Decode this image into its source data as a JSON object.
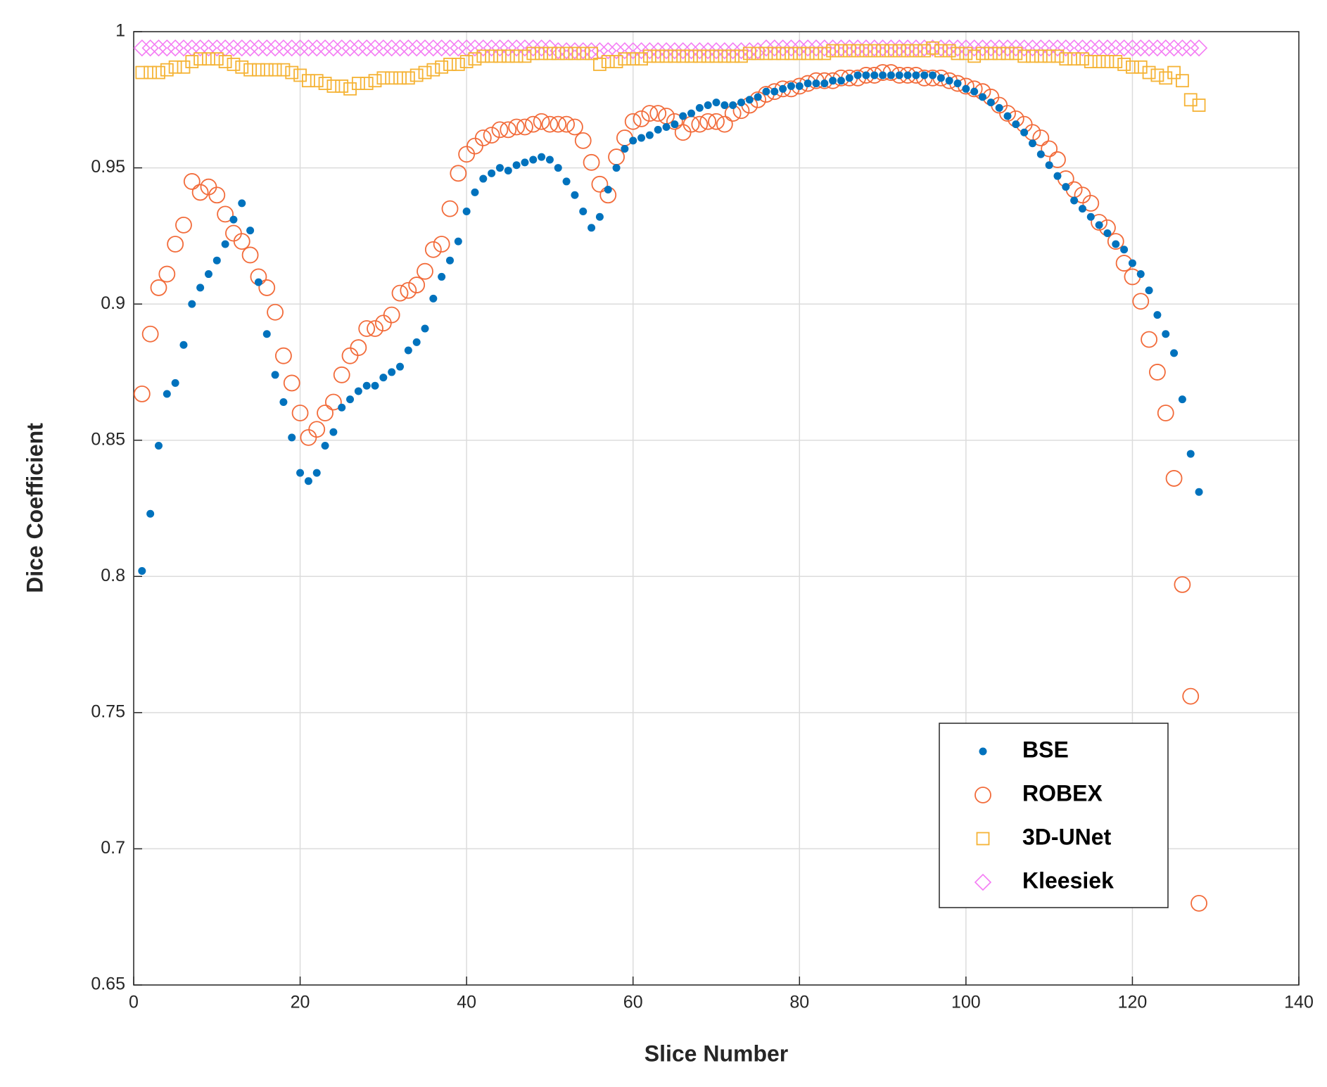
{
  "chart_data": {
    "type": "scatter",
    "x_label": "Slice Number",
    "y_label": "Dice Coefficient",
    "xlim": [
      0,
      140
    ],
    "xticks": [
      0,
      20,
      40,
      60,
      80,
      100,
      120,
      140
    ],
    "ylim": [
      0.65,
      1
    ],
    "yticks": [
      0.65,
      0.7,
      0.75,
      0.8,
      0.85,
      0.9,
      0.95,
      1
    ],
    "grid": true,
    "legend": "lower-right",
    "x": [
      1,
      2,
      3,
      4,
      5,
      6,
      7,
      8,
      9,
      10,
      11,
      12,
      13,
      14,
      15,
      16,
      17,
      18,
      19,
      20,
      21,
      22,
      23,
      24,
      25,
      26,
      27,
      28,
      29,
      30,
      31,
      32,
      33,
      34,
      35,
      36,
      37,
      38,
      39,
      40,
      41,
      42,
      43,
      44,
      45,
      46,
      47,
      48,
      49,
      50,
      51,
      52,
      53,
      54,
      55,
      56,
      57,
      58,
      59,
      60,
      61,
      62,
      63,
      64,
      65,
      66,
      67,
      68,
      69,
      70,
      71,
      72,
      73,
      74,
      75,
      76,
      77,
      78,
      79,
      80,
      81,
      82,
      83,
      84,
      85,
      86,
      87,
      88,
      89,
      90,
      91,
      92,
      93,
      94,
      95,
      96,
      97,
      98,
      99,
      100,
      101,
      102,
      103,
      104,
      105,
      106,
      107,
      108,
      109,
      110,
      111,
      112,
      113,
      114,
      115,
      116,
      117,
      118,
      119,
      120,
      121,
      122,
      123,
      124,
      125,
      126,
      127,
      128
    ],
    "series": [
      {
        "name": "BSE",
        "color": "#0072bd",
        "marker": "dot",
        "values": [
          0.802,
          0.823,
          0.848,
          0.867,
          0.871,
          0.885,
          0.9,
          0.906,
          0.911,
          0.916,
          0.922,
          0.931,
          0.937,
          0.927,
          0.908,
          0.889,
          0.874,
          0.864,
          0.851,
          0.838,
          0.835,
          0.838,
          0.848,
          0.853,
          0.862,
          0.865,
          0.868,
          0.87,
          0.87,
          0.873,
          0.875,
          0.877,
          0.883,
          0.886,
          0.891,
          0.902,
          0.91,
          0.916,
          0.923,
          0.934,
          0.941,
          0.946,
          0.948,
          0.95,
          0.949,
          0.951,
          0.952,
          0.953,
          0.954,
          0.953,
          0.95,
          0.945,
          0.94,
          0.934,
          0.928,
          0.932,
          0.942,
          0.95,
          0.957,
          0.96,
          0.961,
          0.962,
          0.964,
          0.965,
          0.966,
          0.969,
          0.97,
          0.972,
          0.973,
          0.974,
          0.973,
          0.973,
          0.974,
          0.975,
          0.976,
          0.978,
          0.978,
          0.979,
          0.98,
          0.98,
          0.981,
          0.981,
          0.981,
          0.982,
          0.982,
          0.983,
          0.984,
          0.984,
          0.984,
          0.984,
          0.984,
          0.984,
          0.984,
          0.984,
          0.984,
          0.984,
          0.983,
          0.982,
          0.981,
          0.979,
          0.978,
          0.976,
          0.974,
          0.972,
          0.969,
          0.966,
          0.963,
          0.959,
          0.955,
          0.951,
          0.947,
          0.943,
          0.938,
          0.935,
          0.932,
          0.929,
          0.926,
          0.922,
          0.92,
          0.915,
          0.911,
          0.905,
          0.896,
          0.889,
          0.882,
          0.865,
          0.845,
          0.831
        ]
      },
      {
        "name": "ROBEX",
        "color": "#f26b3a",
        "marker": "circle",
        "values": [
          0.867,
          0.889,
          0.906,
          0.911,
          0.922,
          0.929,
          0.945,
          0.941,
          0.943,
          0.94,
          0.933,
          0.926,
          0.923,
          0.918,
          0.91,
          0.906,
          0.897,
          0.881,
          0.871,
          0.86,
          0.851,
          0.854,
          0.86,
          0.864,
          0.874,
          0.881,
          0.884,
          0.891,
          0.891,
          0.893,
          0.896,
          0.904,
          0.905,
          0.907,
          0.912,
          0.92,
          0.922,
          0.935,
          0.948,
          0.955,
          0.958,
          0.961,
          0.962,
          0.964,
          0.964,
          0.965,
          0.965,
          0.966,
          0.967,
          0.966,
          0.966,
          0.966,
          0.965,
          0.96,
          0.952,
          0.944,
          0.94,
          0.954,
          0.961,
          0.967,
          0.968,
          0.97,
          0.97,
          0.969,
          0.967,
          0.963,
          0.966,
          0.966,
          0.967,
          0.967,
          0.966,
          0.97,
          0.971,
          0.973,
          0.975,
          0.977,
          0.978,
          0.979,
          0.979,
          0.98,
          0.981,
          0.982,
          0.982,
          0.982,
          0.983,
          0.983,
          0.983,
          0.984,
          0.984,
          0.985,
          0.985,
          0.984,
          0.984,
          0.984,
          0.983,
          0.983,
          0.983,
          0.982,
          0.981,
          0.98,
          0.979,
          0.978,
          0.976,
          0.973,
          0.97,
          0.968,
          0.966,
          0.963,
          0.961,
          0.957,
          0.953,
          0.946,
          0.942,
          0.94,
          0.937,
          0.93,
          0.928,
          0.923,
          0.915,
          0.91,
          0.901,
          0.887,
          0.875,
          0.86,
          0.836,
          0.797,
          0.756,
          0.68
        ]
      },
      {
        "name": "3D-UNet",
        "color": "#f5b335",
        "marker": "square",
        "values": [
          0.985,
          0.985,
          0.985,
          0.986,
          0.987,
          0.987,
          0.989,
          0.99,
          0.99,
          0.99,
          0.989,
          0.988,
          0.987,
          0.986,
          0.986,
          0.986,
          0.986,
          0.986,
          0.985,
          0.984,
          0.982,
          0.982,
          0.981,
          0.98,
          0.98,
          0.979,
          0.981,
          0.981,
          0.982,
          0.983,
          0.983,
          0.983,
          0.983,
          0.984,
          0.985,
          0.986,
          0.987,
          0.988,
          0.988,
          0.989,
          0.99,
          0.991,
          0.991,
          0.991,
          0.991,
          0.991,
          0.991,
          0.992,
          0.992,
          0.992,
          0.992,
          0.992,
          0.992,
          0.992,
          0.992,
          0.988,
          0.989,
          0.989,
          0.99,
          0.99,
          0.99,
          0.991,
          0.991,
          0.991,
          0.991,
          0.991,
          0.991,
          0.991,
          0.991,
          0.991,
          0.991,
          0.991,
          0.991,
          0.992,
          0.992,
          0.992,
          0.992,
          0.992,
          0.992,
          0.992,
          0.992,
          0.992,
          0.992,
          0.993,
          0.993,
          0.993,
          0.993,
          0.993,
          0.993,
          0.993,
          0.993,
          0.993,
          0.993,
          0.993,
          0.993,
          0.994,
          0.993,
          0.993,
          0.992,
          0.992,
          0.991,
          0.992,
          0.992,
          0.992,
          0.992,
          0.992,
          0.991,
          0.991,
          0.991,
          0.991,
          0.991,
          0.99,
          0.99,
          0.99,
          0.989,
          0.989,
          0.989,
          0.989,
          0.988,
          0.987,
          0.987,
          0.985,
          0.984,
          0.983,
          0.985,
          0.982,
          0.975,
          0.973
        ]
      },
      {
        "name": "Kleesiek",
        "color": "#f47cf4",
        "marker": "diamond",
        "values": [
          0.994,
          0.994,
          0.994,
          0.994,
          0.994,
          0.994,
          0.994,
          0.994,
          0.994,
          0.994,
          0.994,
          0.994,
          0.994,
          0.994,
          0.994,
          0.994,
          0.994,
          0.994,
          0.994,
          0.994,
          0.994,
          0.994,
          0.994,
          0.994,
          0.994,
          0.994,
          0.994,
          0.994,
          0.994,
          0.994,
          0.994,
          0.994,
          0.994,
          0.994,
          0.994,
          0.994,
          0.994,
          0.994,
          0.994,
          0.994,
          0.994,
          0.994,
          0.994,
          0.994,
          0.994,
          0.994,
          0.994,
          0.994,
          0.994,
          0.994,
          0.993,
          0.993,
          0.993,
          0.993,
          0.993,
          0.993,
          0.993,
          0.993,
          0.993,
          0.993,
          0.993,
          0.993,
          0.993,
          0.993,
          0.993,
          0.993,
          0.993,
          0.993,
          0.993,
          0.993,
          0.993,
          0.993,
          0.993,
          0.993,
          0.993,
          0.994,
          0.994,
          0.994,
          0.994,
          0.994,
          0.994,
          0.994,
          0.994,
          0.994,
          0.994,
          0.994,
          0.994,
          0.994,
          0.994,
          0.994,
          0.994,
          0.994,
          0.994,
          0.994,
          0.994,
          0.994,
          0.994,
          0.994,
          0.994,
          0.994,
          0.994,
          0.994,
          0.994,
          0.994,
          0.994,
          0.994,
          0.994,
          0.994,
          0.994,
          0.994,
          0.994,
          0.994,
          0.994,
          0.994,
          0.994,
          0.994,
          0.994,
          0.994,
          0.994,
          0.994,
          0.994,
          0.994,
          0.994,
          0.994,
          0.994,
          0.994,
          0.994,
          0.994
        ]
      }
    ]
  }
}
